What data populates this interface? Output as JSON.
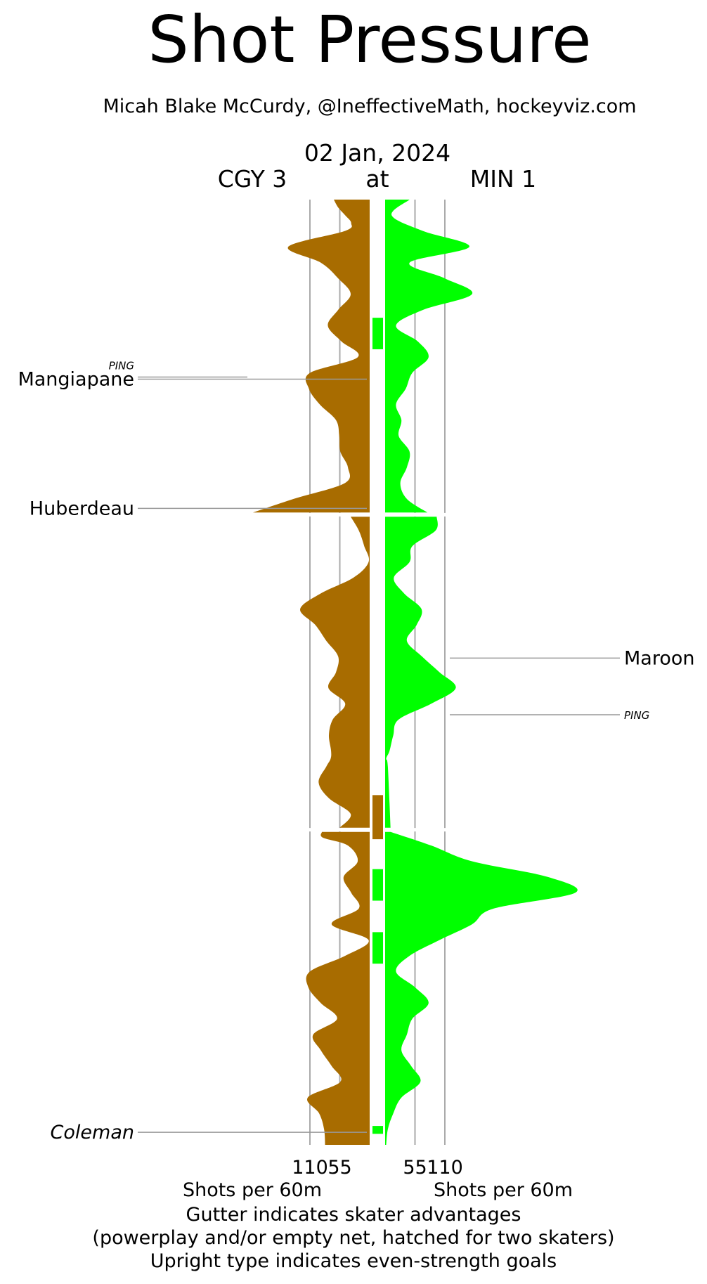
{
  "header": {
    "title": "Shot Pressure",
    "subtitle": "Micah Blake McCurdy, @IneffectiveMath, hockeyviz.com",
    "date": "02 Jan, 2024",
    "away_label": "CGY 3",
    "at_label": "at",
    "home_label": "MIN 1"
  },
  "footer": {
    "xlabel_left": "Shots per 60m",
    "xlabel_right": "Shots per 60m",
    "note_1": "Gutter indicates skater advantages",
    "note_2": "(powerplay and/or empty net, hatched for two skaters)",
    "note_3": "Upright type indicates even-strength goals"
  },
  "colors": {
    "away": "#a86c00",
    "home": "#00ff00",
    "gridline": "#aaaaaa",
    "leader": "#999999"
  },
  "chart_data": {
    "type": "area",
    "orientation": "vertical mirrored",
    "x_ticks": [
      110,
      55
    ],
    "x_tick_labels": [
      "110",
      "55",
      "55",
      "110"
    ],
    "xlim": [
      0,
      220
    ],
    "ylim_minutes": [
      0,
      60
    ],
    "periods": [
      1,
      2,
      3
    ],
    "series": [
      {
        "name": "CGY 3",
        "side": "left",
        "points": [
          [
            0,
            66
          ],
          [
            0.5,
            58
          ],
          [
            1,
            45
          ],
          [
            1.5,
            34
          ],
          [
            2,
            46
          ],
          [
            3,
            150
          ],
          [
            4,
            90
          ],
          [
            5,
            58
          ],
          [
            6,
            35
          ],
          [
            7,
            58
          ],
          [
            8,
            77
          ],
          [
            9,
            52
          ],
          [
            10,
            22
          ],
          [
            11,
            110
          ],
          [
            12,
            112
          ],
          [
            13,
            92
          ],
          [
            14,
            62
          ],
          [
            15,
            56
          ],
          [
            16,
            54
          ],
          [
            17,
            40
          ],
          [
            18,
            46
          ],
          [
            19,
            140
          ],
          [
            20,
            215
          ],
          [
            20,
            35
          ],
          [
            21,
            20
          ],
          [
            22,
            10
          ],
          [
            23,
            2
          ],
          [
            24,
            30
          ],
          [
            25,
            90
          ],
          [
            26,
            128
          ],
          [
            27,
            100
          ],
          [
            28,
            80
          ],
          [
            29,
            58
          ],
          [
            30,
            62
          ],
          [
            31,
            76
          ],
          [
            32,
            45
          ],
          [
            33,
            68
          ],
          [
            34,
            75
          ],
          [
            35,
            71
          ],
          [
            35.5,
            72
          ],
          [
            36,
            80
          ],
          [
            37,
            94
          ],
          [
            38,
            75
          ],
          [
            39,
            35
          ],
          [
            40,
            55
          ],
          [
            40,
            88
          ],
          [
            40.5,
            86
          ],
          [
            41,
            40
          ],
          [
            42,
            22
          ],
          [
            43,
            48
          ],
          [
            44,
            34
          ],
          [
            45,
            20
          ],
          [
            46,
            70
          ],
          [
            47,
            2
          ],
          [
            48,
            45
          ],
          [
            49,
            110
          ],
          [
            50,
            113
          ],
          [
            51,
            90
          ],
          [
            52,
            60
          ],
          [
            53,
            104
          ],
          [
            54,
            90
          ],
          [
            55,
            70
          ],
          [
            56,
            54
          ],
          [
            57,
            114
          ],
          [
            58,
            93
          ],
          [
            59,
            84
          ],
          [
            60,
            82
          ]
        ]
      },
      {
        "name": "MIN 1",
        "side": "right",
        "points": [
          [
            0,
            45
          ],
          [
            1,
            12
          ],
          [
            2,
            70
          ],
          [
            3,
            155
          ],
          [
            4,
            45
          ],
          [
            5,
            110
          ],
          [
            6,
            160
          ],
          [
            7,
            70
          ],
          [
            8,
            20
          ],
          [
            9,
            60
          ],
          [
            10,
            80
          ],
          [
            11,
            50
          ],
          [
            12,
            38
          ],
          [
            13,
            20
          ],
          [
            14,
            30
          ],
          [
            15,
            25
          ],
          [
            16,
            45
          ],
          [
            17,
            40
          ],
          [
            18,
            28
          ],
          [
            19,
            40
          ],
          [
            20,
            78
          ],
          [
            20,
            95
          ],
          [
            21,
            93
          ],
          [
            22,
            50
          ],
          [
            23,
            45
          ],
          [
            24,
            16
          ],
          [
            25,
            35
          ],
          [
            26,
            67
          ],
          [
            27,
            58
          ],
          [
            28,
            40
          ],
          [
            29,
            68
          ],
          [
            30,
            100
          ],
          [
            31,
            130
          ],
          [
            32,
            85
          ],
          [
            33,
            25
          ],
          [
            34,
            15
          ],
          [
            35,
            8
          ],
          [
            35.5,
            2
          ],
          [
            36,
            5
          ],
          [
            40,
            10
          ],
          [
            41,
            85
          ],
          [
            42,
            160
          ],
          [
            43,
            300
          ],
          [
            44,
            350
          ],
          [
            45,
            200
          ],
          [
            46,
            160
          ],
          [
            47,
            100
          ],
          [
            48,
            45
          ],
          [
            49,
            20
          ],
          [
            50,
            55
          ],
          [
            51,
            80
          ],
          [
            52,
            50
          ],
          [
            53,
            40
          ],
          [
            54,
            30
          ],
          [
            55,
            48
          ],
          [
            56,
            65
          ],
          [
            57,
            30
          ],
          [
            58,
            15
          ],
          [
            59,
            5
          ],
          [
            60,
            2
          ]
        ]
      }
    ],
    "gutter": [
      {
        "team": "MIN 1",
        "start_min": 7.5,
        "end_min": 9.5
      },
      {
        "team": "CGY 3",
        "start_min": 37.8,
        "end_min": 40.6
      },
      {
        "team": "MIN 1",
        "start_min": 42.5,
        "end_min": 44.5
      },
      {
        "team": "MIN 1",
        "start_min": 46.5,
        "end_min": 48.5
      },
      {
        "team": "MIN 1",
        "start_min": 58.8,
        "end_min": 59.3
      }
    ],
    "goals": [
      {
        "team": "CGY 3",
        "player": "Mangiapane",
        "assist_note": "PING",
        "minute": 11.4,
        "italic": false
      },
      {
        "team": "CGY 3",
        "player": "Huberdeau",
        "minute": 19.6,
        "italic": false
      },
      {
        "team": "MIN 1",
        "player": "Maroon",
        "minute": 29.1,
        "italic": false
      },
      {
        "team": "MIN 1",
        "player": "PING",
        "minute": 32.7,
        "italic": true,
        "small": true
      },
      {
        "team": "CGY 3",
        "player": "Coleman",
        "minute": 59.2,
        "italic": true
      }
    ]
  }
}
